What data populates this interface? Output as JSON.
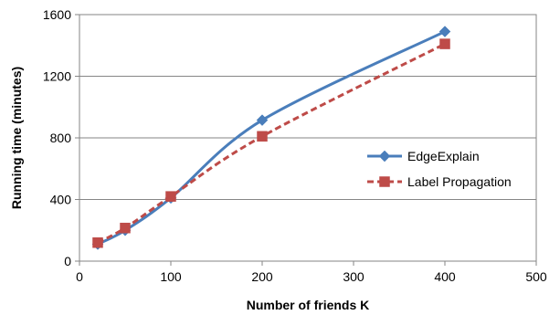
{
  "chart_data": {
    "type": "line",
    "xlabel": "Number of friends K",
    "ylabel": "Running time (minutes)",
    "xlim": [
      0,
      500
    ],
    "ylim": [
      0,
      1600
    ],
    "xticks": [
      0,
      100,
      200,
      300,
      400,
      500
    ],
    "yticks": [
      0,
      400,
      800,
      1200,
      1600
    ],
    "grid": "horizontal",
    "legend_position": "right",
    "series": [
      {
        "name": "EdgeExplain",
        "color": "#4a7ebb",
        "marker": "diamond",
        "line_style": "solid",
        "smooth": true,
        "x": [
          20,
          50,
          100,
          200,
          400
        ],
        "y": [
          110,
          200,
          410,
          915,
          1490
        ]
      },
      {
        "name": "Label Propagation",
        "color": "#be4b48",
        "marker": "square",
        "line_style": "dashed",
        "smooth": true,
        "x": [
          20,
          50,
          100,
          200,
          400
        ],
        "y": [
          120,
          215,
          420,
          810,
          1410
        ]
      }
    ]
  }
}
